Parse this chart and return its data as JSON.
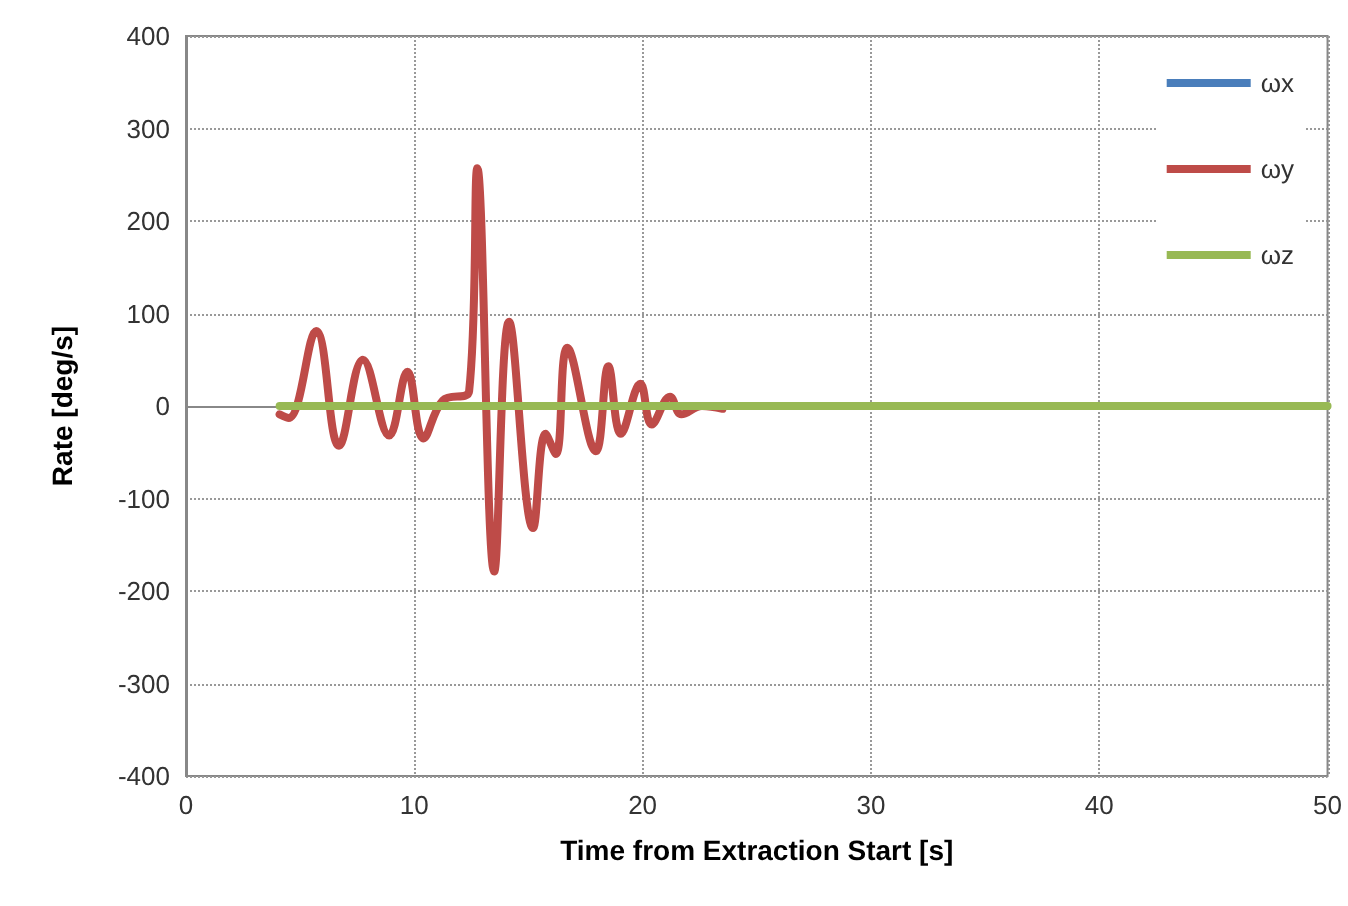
{
  "chart_data": {
    "type": "line",
    "xlabel": "Time from Extraction Start [s]",
    "ylabel": "Rate [deg/s]",
    "xlim": [
      0,
      50
    ],
    "xticks": [
      0,
      10,
      20,
      30,
      40,
      50
    ],
    "ylim": [
      -400,
      400
    ],
    "yticks": [
      -400,
      -300,
      -200,
      -100,
      0,
      100,
      200,
      300,
      400
    ],
    "grid": true,
    "legend": "top right",
    "marker": "none",
    "line_style": "solid",
    "series": [
      {
        "name": "ωx",
        "color": "#4a7ebb"
      },
      {
        "name": "ωy",
        "color": "#be4b48",
        "x": [
          4.1,
          4.5,
          5.7,
          6.7,
          7.75,
          8.9,
          9.7,
          10.4,
          11.25,
          12.4,
          12.76,
          13.5,
          14.15,
          15.2,
          15.75,
          16.2,
          16.7,
          17.95,
          18.5,
          19.05,
          19.9,
          20.4,
          21.2,
          21.7,
          22.6,
          23.5
        ],
        "values": [
          -9,
          -13,
          81,
          -43,
          50,
          -32,
          37,
          -35,
          6,
          16,
          257,
          -179,
          91,
          -132,
          -30,
          -52,
          63,
          -49,
          43,
          -30,
          24,
          -20,
          10,
          -9,
          0,
          -3
        ]
      },
      {
        "name": "ωz",
        "color": "#98b954",
        "x": [
          4.1,
          50
        ],
        "values": [
          0,
          0
        ]
      }
    ]
  }
}
